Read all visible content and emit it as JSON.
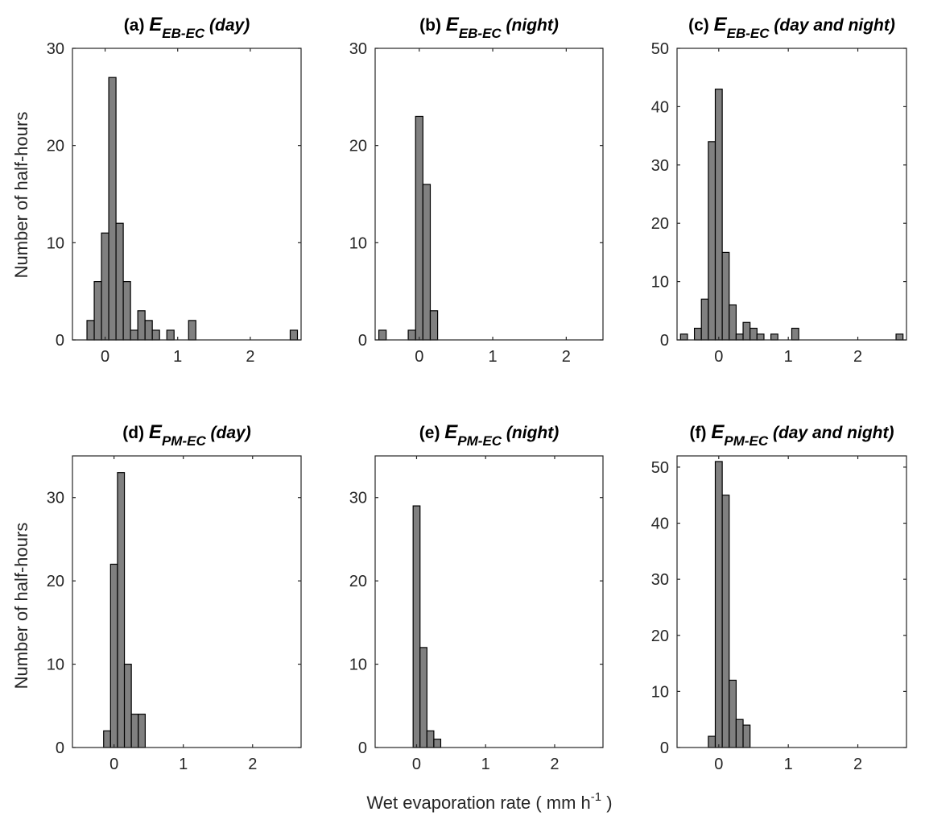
{
  "figure": {
    "xlabel_main": "Wet evaporation rate ( mm h",
    "xlabel_sup": "-1",
    "xlabel_end": " )",
    "ylabel": "Number of half-hours",
    "colors": {
      "bar_fill": "#808080",
      "bar_edge": "#000000",
      "axes": "#262626"
    }
  },
  "chart_data": [
    {
      "type": "bar",
      "title_prefix": "(a) ",
      "title_var": "E",
      "title_sub": "EB-EC",
      "title_suffix": " (day)",
      "bin_width": 0.1,
      "bin_centers": [
        -0.2,
        -0.1,
        0.0,
        0.1,
        0.2,
        0.3,
        0.4,
        0.5,
        0.6,
        0.7,
        0.8,
        0.9,
        1.0,
        1.1,
        1.2,
        1.3,
        1.4,
        1.5,
        1.6,
        1.7,
        1.8,
        1.9,
        2.0,
        2.1,
        2.2,
        2.3,
        2.4,
        2.5,
        2.6
      ],
      "values": [
        2,
        6,
        11,
        27,
        12,
        6,
        1,
        3,
        2,
        1,
        0,
        1,
        0,
        0,
        2,
        0,
        0,
        0,
        0,
        0,
        0,
        0,
        0,
        0,
        0,
        0,
        0,
        0,
        1
      ],
      "xlim": [
        -0.45,
        2.7
      ],
      "ylim": [
        0,
        30
      ],
      "xticks": [
        0,
        1,
        2
      ],
      "yticks": [
        0,
        10,
        20,
        30
      ]
    },
    {
      "type": "bar",
      "title_prefix": "(b) ",
      "title_var": "E",
      "title_sub": "EB-EC",
      "title_suffix": " (night)",
      "bin_width": 0.1,
      "bin_centers": [
        -0.5,
        -0.4,
        -0.3,
        -0.2,
        -0.1,
        0.0,
        0.1,
        0.2
      ],
      "values": [
        1,
        0,
        0,
        0,
        1,
        23,
        16,
        3
      ],
      "xlim": [
        -0.6,
        2.5
      ],
      "ylim": [
        0,
        30
      ],
      "xticks": [
        0,
        1,
        2
      ],
      "yticks": [
        0,
        10,
        20,
        30
      ]
    },
    {
      "type": "bar",
      "title_prefix": "(c) ",
      "title_var": "E",
      "title_sub": "EB-EC",
      "title_suffix": " (day and night)",
      "bin_width": 0.1,
      "bin_centers": [
        -0.5,
        -0.4,
        -0.3,
        -0.2,
        -0.1,
        0.0,
        0.1,
        0.2,
        0.3,
        0.4,
        0.5,
        0.6,
        0.7,
        0.8,
        0.9,
        1.0,
        1.1,
        1.2,
        1.3,
        1.4,
        1.5,
        1.6,
        1.7,
        1.8,
        1.9,
        2.0,
        2.1,
        2.2,
        2.3,
        2.4,
        2.5,
        2.6
      ],
      "values": [
        1,
        0,
        2,
        7,
        34,
        43,
        15,
        6,
        1,
        3,
        2,
        1,
        0,
        1,
        0,
        0,
        2,
        0,
        0,
        0,
        0,
        0,
        0,
        0,
        0,
        0,
        0,
        0,
        0,
        0,
        0,
        1
      ],
      "xlim": [
        -0.6,
        2.7
      ],
      "ylim": [
        0,
        50
      ],
      "xticks": [
        0,
        1,
        2
      ],
      "yticks": [
        0,
        10,
        20,
        30,
        40,
        50
      ]
    },
    {
      "type": "bar",
      "title_prefix": "(d) ",
      "title_var": "E",
      "title_sub": "PM-EC",
      "title_suffix": " (day)",
      "bin_width": 0.1,
      "bin_centers": [
        -0.1,
        0.0,
        0.1,
        0.2,
        0.3,
        0.4
      ],
      "values": [
        2,
        22,
        33,
        10,
        4,
        4
      ],
      "xlim": [
        -0.6,
        2.7
      ],
      "ylim": [
        0,
        35
      ],
      "xticks": [
        0,
        1,
        2
      ],
      "yticks": [
        0,
        10,
        20,
        30
      ]
    },
    {
      "type": "bar",
      "title_prefix": "(e) ",
      "title_var": "E",
      "title_sub": "PM-EC",
      "title_suffix": " (night)",
      "bin_width": 0.1,
      "bin_centers": [
        0.0,
        0.1,
        0.2,
        0.3
      ],
      "values": [
        29,
        12,
        2,
        1
      ],
      "xlim": [
        -0.6,
        2.7
      ],
      "ylim": [
        0,
        35
      ],
      "xticks": [
        0,
        1,
        2
      ],
      "yticks": [
        0,
        10,
        20,
        30
      ]
    },
    {
      "type": "bar",
      "title_prefix": "(f) ",
      "title_var": "E",
      "title_sub": "PM-EC",
      "title_suffix": " (day and night)",
      "bin_width": 0.1,
      "bin_centers": [
        -0.1,
        0.0,
        0.1,
        0.2,
        0.3,
        0.4
      ],
      "values": [
        2,
        51,
        45,
        12,
        5,
        4
      ],
      "xlim": [
        -0.6,
        2.7
      ],
      "ylim": [
        0,
        52
      ],
      "xticks": [
        0,
        1,
        2
      ],
      "yticks": [
        0,
        10,
        20,
        30,
        40,
        50
      ]
    }
  ]
}
